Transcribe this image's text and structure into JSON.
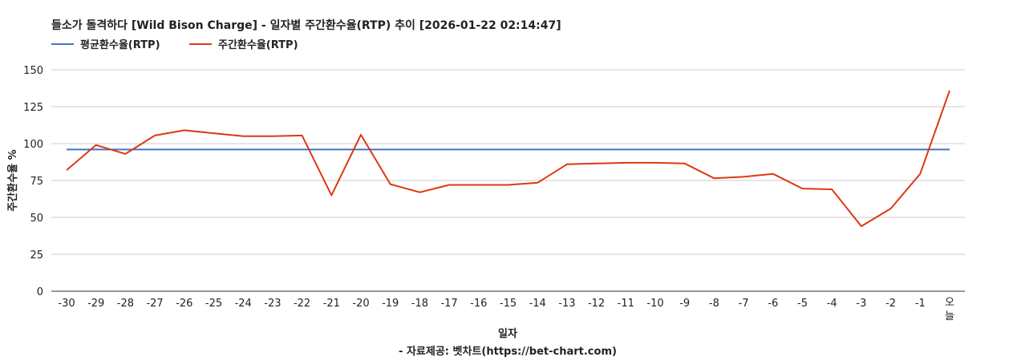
{
  "chart_data": {
    "type": "line",
    "title": "들소가 돌격하다 [Wild Bison Charge] - 일자별 주간환수율(RTP) 추이 [2026-01-22 02:14:47]",
    "xlabel": "일자",
    "ylabel": "주간환수율 %",
    "source": "- 자료제공: 벳차트(https://bet-chart.com)",
    "categories": [
      "-30",
      "-29",
      "-28",
      "-27",
      "-26",
      "-25",
      "-24",
      "-23",
      "-22",
      "-21",
      "-20",
      "-19",
      "-18",
      "-17",
      "-16",
      "-15",
      "-14",
      "-13",
      "-12",
      "-11",
      "-10",
      "-9",
      "-8",
      "-7",
      "-6",
      "-5",
      "-4",
      "-3",
      "-2",
      "-1",
      "오늘"
    ],
    "ylim": [
      0,
      150
    ],
    "yticks": [
      "0",
      "25",
      "50",
      "75",
      "100",
      "125",
      "150"
    ],
    "grid": true,
    "legend_position": "top-left",
    "series": [
      {
        "name": "평균환수율(RTP)",
        "color": "#4472c4",
        "values": [
          96,
          96,
          96,
          96,
          96,
          96,
          96,
          96,
          96,
          96,
          96,
          96,
          96,
          96,
          96,
          96,
          96,
          96,
          96,
          96,
          96,
          96,
          96,
          96,
          96,
          96,
          96,
          96,
          96,
          96,
          96
        ]
      },
      {
        "name": "주간환수율(RTP)",
        "color": "#dc3912",
        "values": [
          82,
          99,
          93,
          105.5,
          109,
          107,
          105,
          105,
          105.5,
          65,
          106,
          72.5,
          67,
          72,
          72,
          72,
          73.5,
          86,
          86.5,
          87,
          87,
          86.5,
          76.5,
          77.5,
          79.5,
          69.5,
          69,
          44,
          56,
          79.5,
          136
        ]
      }
    ]
  }
}
